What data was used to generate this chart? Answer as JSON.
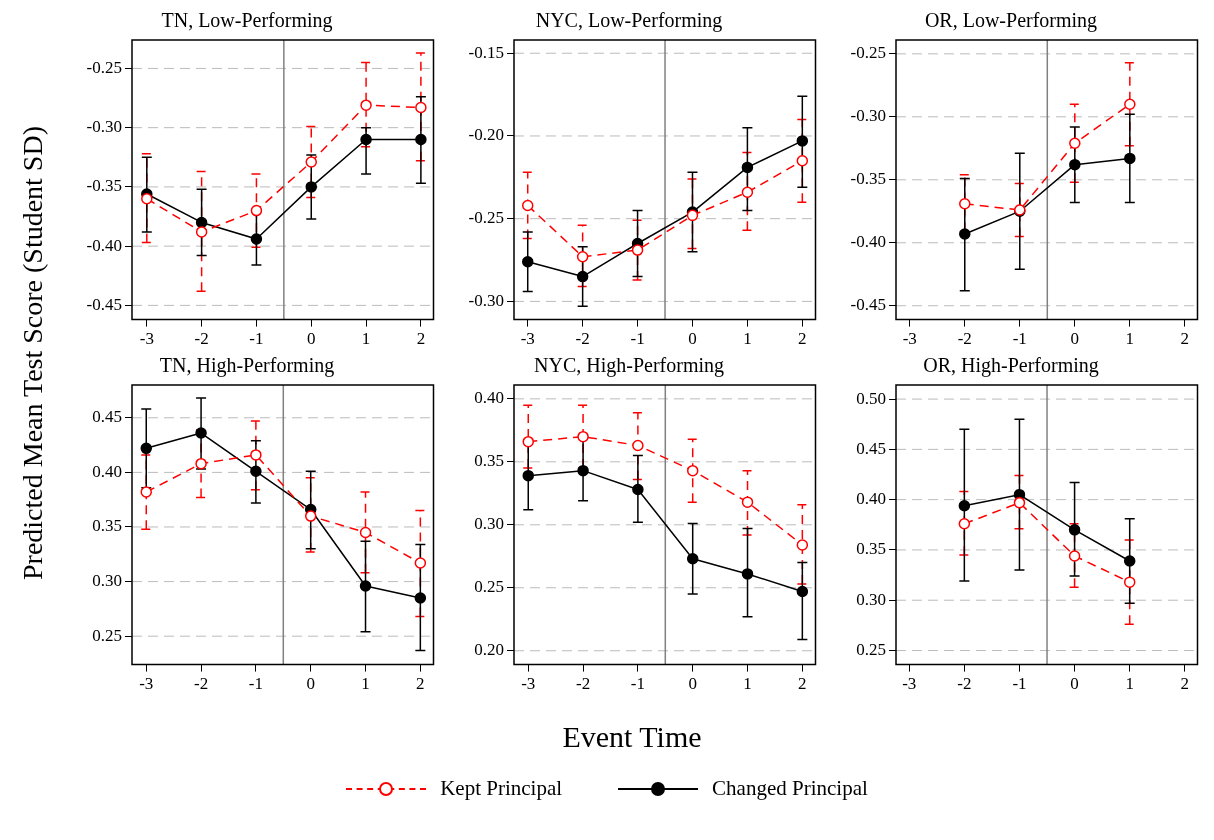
{
  "chart_data": [
    {
      "type": "line",
      "title": "TN, Low-Performing",
      "ylabel": "Predicted Mean Test Score (Student SD)",
      "x": [
        -3,
        -2,
        -1,
        0,
        1,
        2
      ],
      "xlim": [
        -3.27,
        2.23
      ],
      "xticks": [
        -3,
        -2,
        -1,
        0,
        1,
        2
      ],
      "ylim": [
        -0.462,
        -0.226
      ],
      "yticks": [
        {
          "value": -0.45,
          "label": "-0.45"
        },
        {
          "value": -0.4,
          "label": "-0.40"
        },
        {
          "value": -0.35,
          "label": "-0.35"
        },
        {
          "value": -0.3,
          "label": "-0.30"
        },
        {
          "value": -0.25,
          "label": "-0.25"
        }
      ],
      "grid": "y",
      "marker": "circle",
      "ref_lines": [
        {
          "axis": "x",
          "value": -0.5,
          "color": "#808080"
        }
      ],
      "series": [
        {
          "color": "#ff0000",
          "line_style": "dashed",
          "values": [
            -0.36,
            -0.388,
            -0.37,
            -0.329,
            -0.281,
            -0.283
          ],
          "errors": [
            [
              -0.397,
              -0.322
            ],
            [
              -0.438,
              -0.337
            ],
            [
              -0.401,
              -0.339
            ],
            [
              -0.359,
              -0.299
            ],
            [
              -0.316,
              -0.245
            ],
            [
              -0.328,
              -0.237
            ]
          ]
        },
        {
          "color": "#000000",
          "line_style": "solid",
          "values": [
            -0.356,
            -0.38,
            -0.394,
            -0.35,
            -0.31,
            -0.31
          ],
          "errors": [
            [
              -0.388,
              -0.325
            ],
            [
              -0.408,
              -0.352
            ],
            [
              -0.416,
              -0.371
            ],
            [
              -0.377,
              -0.323
            ],
            [
              -0.339,
              -0.3
            ],
            [
              -0.347,
              -0.274
            ]
          ]
        }
      ]
    },
    {
      "type": "line",
      "title": "NYC, Low-Performing",
      "x": [
        -3,
        -2,
        -1,
        0,
        1,
        2
      ],
      "xlim": [
        -3.25,
        2.24
      ],
      "xticks": [
        -3,
        -2,
        -1,
        0,
        1,
        2
      ],
      "ylim": [
        -0.311,
        -0.142
      ],
      "yticks": [
        {
          "value": -0.3,
          "label": "-0.30"
        },
        {
          "value": -0.25,
          "label": "-0.25"
        },
        {
          "value": -0.2,
          "label": "-0.20"
        },
        {
          "value": -0.15,
          "label": "-0.15"
        }
      ],
      "grid": "y",
      "marker": "circle",
      "ref_lines": [
        {
          "axis": "x",
          "value": -0.5,
          "color": "#808080"
        }
      ],
      "series": [
        {
          "color": "#ff0000",
          "line_style": "dashed",
          "values": [
            -0.242,
            -0.273,
            -0.269,
            -0.248,
            -0.234,
            -0.215
          ],
          "errors": [
            [
              -0.262,
              -0.222
            ],
            [
              -0.291,
              -0.254
            ],
            [
              -0.287,
              -0.251
            ],
            [
              -0.268,
              -0.226
            ],
            [
              -0.257,
              -0.21
            ],
            [
              -0.24,
              -0.19
            ]
          ]
        },
        {
          "color": "#000000",
          "line_style": "solid",
          "values": [
            -0.276,
            -0.285,
            -0.265,
            -0.246,
            -0.219,
            -0.203
          ],
          "errors": [
            [
              -0.294,
              -0.258
            ],
            [
              -0.303,
              -0.267
            ],
            [
              -0.285,
              -0.245
            ],
            [
              -0.27,
              -0.222
            ],
            [
              -0.245,
              -0.195
            ],
            [
              -0.231,
              -0.176
            ]
          ]
        }
      ]
    },
    {
      "type": "line",
      "title": "OR, Low-Performing",
      "xlim": [
        -3.25,
        2.23
      ],
      "xticks": [
        -3,
        -2,
        -1,
        0,
        1,
        2
      ],
      "ylim": [
        -0.461,
        -0.239
      ],
      "yticks": [
        {
          "value": -0.45,
          "label": "-0.45"
        },
        {
          "value": -0.4,
          "label": "-0.40"
        },
        {
          "value": -0.35,
          "label": "-0.35"
        },
        {
          "value": -0.3,
          "label": "-0.30"
        },
        {
          "value": -0.25,
          "label": "-0.25"
        }
      ],
      "grid": "y",
      "marker": "circle",
      "ref_lines": [
        {
          "axis": "x",
          "value": -0.5,
          "color": "#808080"
        }
      ],
      "series": [
        {
          "color": "#ff0000",
          "line_style": "dashed",
          "x": [
            -2,
            -1,
            0,
            1
          ],
          "values": [
            -0.369,
            -0.374,
            -0.321,
            -0.29
          ],
          "errors": [
            [
              -0.391,
              -0.346
            ],
            [
              -0.395,
              -0.353
            ],
            [
              -0.352,
              -0.29
            ],
            [
              -0.323,
              -0.257
            ]
          ]
        },
        {
          "color": "#000000",
          "line_style": "solid",
          "x": [
            -2,
            -1,
            0,
            1
          ],
          "values": [
            -0.393,
            -0.375,
            -0.338,
            -0.333
          ],
          "errors": [
            [
              -0.438,
              -0.349
            ],
            [
              -0.421,
              -0.329
            ],
            [
              -0.368,
              -0.308
            ],
            [
              -0.368,
              -0.298
            ]
          ]
        }
      ]
    },
    {
      "type": "line",
      "title": "TN, High-Performing",
      "x": [
        -3,
        -2,
        -1,
        0,
        1,
        2
      ],
      "xlim": [
        -3.26,
        2.24
      ],
      "xticks": [
        -3,
        -2,
        -1,
        0,
        1,
        2
      ],
      "ylim": [
        0.224,
        0.48
      ],
      "yticks": [
        0.25,
        {
          "value": 0.3,
          "label": "0.30"
        },
        0.35,
        {
          "value": 0.4,
          "label": "0.40"
        },
        0.45
      ],
      "grid": "y",
      "marker": "circle",
      "ref_lines": [
        {
          "axis": "x",
          "value": -0.5,
          "color": "#808080"
        }
      ],
      "series": [
        {
          "color": "#ff0000",
          "line_style": "dashed",
          "values": [
            0.382,
            0.408,
            0.416,
            0.36,
            0.345,
            0.317
          ],
          "errors": [
            [
              0.348,
              0.416
            ],
            [
              0.377,
              0.439
            ],
            [
              0.384,
              0.447
            ],
            [
              0.327,
              0.395
            ],
            [
              0.308,
              0.382
            ],
            [
              0.268,
              0.365
            ]
          ]
        },
        {
          "color": "#000000",
          "line_style": "solid",
          "values": [
            0.422,
            0.436,
            0.401,
            0.366,
            0.296,
            0.285
          ],
          "errors": [
            [
              0.386,
              0.458
            ],
            [
              0.403,
              0.468
            ],
            [
              0.372,
              0.429
            ],
            [
              0.33,
              0.401
            ],
            [
              0.254,
              0.337
            ],
            [
              0.237,
              0.334
            ]
          ]
        }
      ]
    },
    {
      "type": "line",
      "title": "NYC, High-Performing",
      "xlabel": "Event Time",
      "x": [
        -3,
        -2,
        -1,
        0,
        1,
        2
      ],
      "xlim": [
        -3.26,
        2.24
      ],
      "xticks": [
        -3,
        -2,
        -1,
        0,
        1,
        2
      ],
      "ylim": [
        0.189,
        0.411
      ],
      "yticks": [
        {
          "value": 0.2,
          "label": "0.20"
        },
        0.25,
        {
          "value": 0.3,
          "label": "0.30"
        },
        0.35,
        {
          "value": 0.4,
          "label": "0.40"
        }
      ],
      "grid": "y",
      "marker": "circle",
      "legend": "bottom",
      "ref_lines": [
        {
          "axis": "x",
          "value": -0.5,
          "color": "#808080"
        }
      ],
      "series": [
        {
          "name": "Kept Principal",
          "color": "#ff0000",
          "line_style": "dashed",
          "values": [
            0.366,
            0.37,
            0.363,
            0.343,
            0.318,
            0.284
          ],
          "errors": [
            [
              0.345,
              0.395
            ],
            [
              0.345,
              0.395
            ],
            [
              0.336,
              0.389
            ],
            [
              0.318,
              0.368
            ],
            [
              0.292,
              0.343
            ],
            [
              0.253,
              0.316
            ]
          ]
        },
        {
          "name": "Changed Principal",
          "color": "#000000",
          "line_style": "solid",
          "values": [
            0.339,
            0.343,
            0.328,
            0.273,
            0.261,
            0.247
          ],
          "errors": [
            [
              0.312,
              0.366
            ],
            [
              0.319,
              0.37
            ],
            [
              0.302,
              0.355
            ],
            [
              0.245,
              0.301
            ],
            [
              0.227,
              0.297
            ],
            [
              0.209,
              0.27
            ]
          ]
        }
      ]
    },
    {
      "type": "line",
      "title": "OR, High-Performing",
      "xlim": [
        -3.24,
        2.23
      ],
      "xticks": [
        -3,
        -2,
        -1,
        0,
        1,
        2
      ],
      "ylim": [
        0.236,
        0.514
      ],
      "yticks": [
        0.25,
        {
          "value": 0.3,
          "label": "0.30"
        },
        0.35,
        {
          "value": 0.4,
          "label": "0.40"
        },
        0.45,
        {
          "value": 0.5,
          "label": "0.50"
        }
      ],
      "grid": "y",
      "marker": "circle",
      "ref_lines": [
        {
          "axis": "x",
          "value": -0.5,
          "color": "#808080"
        }
      ],
      "series": [
        {
          "color": "#ff0000",
          "line_style": "dashed",
          "x": [
            -2,
            -1,
            0,
            1
          ],
          "values": [
            0.376,
            0.397,
            0.344,
            0.318
          ],
          "errors": [
            [
              0.345,
              0.408
            ],
            [
              0.371,
              0.424
            ],
            [
              0.313,
              0.376
            ],
            [
              0.276,
              0.36
            ]
          ]
        },
        {
          "color": "#000000",
          "line_style": "solid",
          "x": [
            -2,
            -1,
            0,
            1
          ],
          "values": [
            0.394,
            0.405,
            0.37,
            0.339
          ],
          "errors": [
            [
              0.319,
              0.47
            ],
            [
              0.33,
              0.48
            ],
            [
              0.324,
              0.417
            ],
            [
              0.297,
              0.381
            ]
          ]
        }
      ]
    }
  ]
}
